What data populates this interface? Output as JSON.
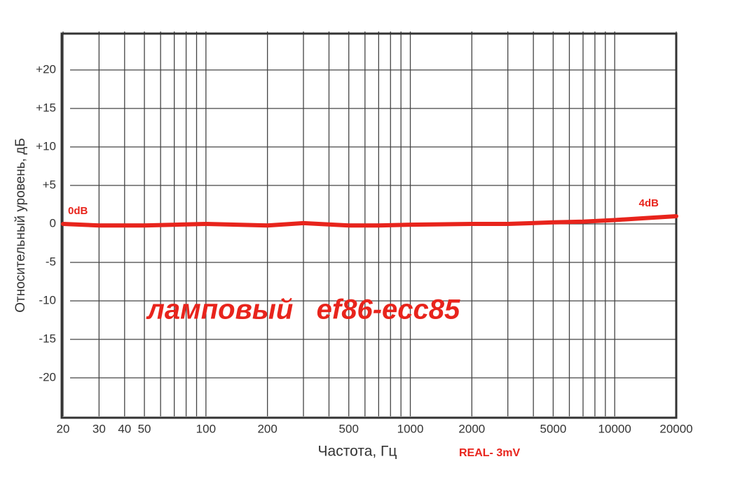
{
  "chart_data": {
    "type": "line",
    "x_label": "Частота, Гц",
    "y_label": "Относительный уровень, дБ",
    "annotations": [
      "0dB",
      "4dB",
      "ламповый   ef86-ecc85",
      "REAL- 3mV"
    ],
    "x": [
      20,
      30,
      50,
      100,
      200,
      300,
      500,
      700,
      1000,
      2000,
      3000,
      5000,
      7000,
      10000,
      15000,
      20000
    ],
    "series": [
      {
        "name": "REAL- 3mV",
        "color": "#e8241c",
        "values": [
          0,
          -0.2,
          -0.2,
          0,
          -0.2,
          0.1,
          -0.2,
          -0.2,
          -0.1,
          0,
          0,
          0.2,
          0.3,
          0.5,
          0.8,
          1
        ]
      }
    ],
    "xscale": "log",
    "xlim": [
      20,
      20000
    ],
    "xticks": [
      20,
      30,
      40,
      50,
      100,
      200,
      500,
      1000,
      2000,
      5000,
      10000,
      20000
    ],
    "xgrid": [
      20,
      30,
      40,
      50,
      60,
      70,
      80,
      90,
      100,
      200,
      300,
      400,
      500,
      600,
      700,
      800,
      900,
      1000,
      2000,
      3000,
      4000,
      5000,
      6000,
      7000,
      8000,
      9000,
      10000,
      20000
    ],
    "ylim": [
      -25,
      25
    ],
    "yticks": [
      {
        "value": 20,
        "label": "+20"
      },
      {
        "value": 15,
        "label": "+15"
      },
      {
        "value": 10,
        "label": "+10"
      },
      {
        "value": 5,
        "label": "+5"
      },
      0,
      -5,
      -10,
      -15,
      -20
    ],
    "grid": true
  }
}
